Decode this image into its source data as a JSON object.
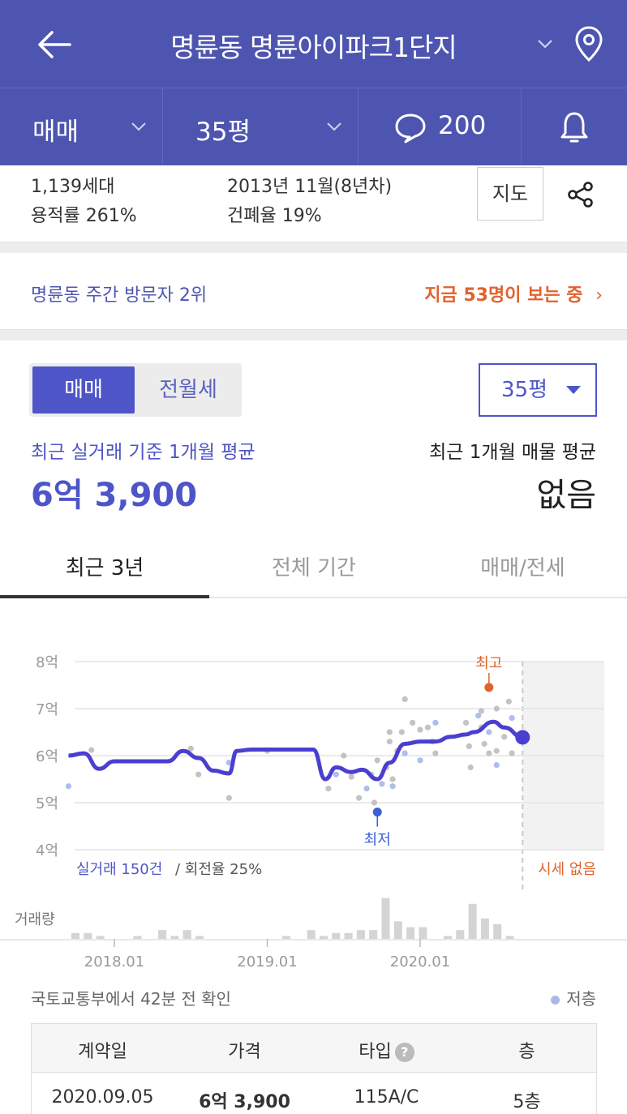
{
  "header": {
    "title": "명륜동 명륜아이파크1단지"
  },
  "subbar": {
    "trade_type": "매매",
    "size": "35평",
    "comment_count": "200"
  },
  "info": {
    "households": "1,139세대",
    "far": "용적률 261%",
    "built": "2013년 11월(8년차)",
    "bcr": "건폐율 19%",
    "map_label": "지도"
  },
  "visitors": {
    "rank": "명륜동 주간 방문자 2위",
    "viewing": "지금 53명이 보는 중"
  },
  "segment": {
    "active": "매매",
    "inactive": "전월세"
  },
  "size_select": "35평",
  "averages": {
    "deal_label": "최근 실거래 기준 1개월 평균",
    "deal_value": "6억 3,900",
    "listing_label": "최근 1개월 매물 평균",
    "listing_value": "없음"
  },
  "tabs": [
    "최근 3년",
    "전체 기간",
    "매매/전세"
  ],
  "chart_data": {
    "type": "line",
    "y_ticks": [
      "8억",
      "7억",
      "6억",
      "5억",
      "4억"
    ],
    "ylim": [
      4,
      8
    ],
    "x_ticks": [
      "2018.01",
      "2019.01",
      "2020.01"
    ],
    "series": [
      {
        "values": [
          [
            2017.7,
            6.0
          ],
          [
            2017.8,
            6.05
          ],
          [
            2017.9,
            5.72
          ],
          [
            2018.0,
            5.88
          ],
          [
            2018.2,
            5.88
          ],
          [
            2018.35,
            5.88
          ],
          [
            2018.45,
            6.1
          ],
          [
            2018.55,
            5.95
          ],
          [
            2018.65,
            5.68
          ],
          [
            2018.75,
            5.62
          ],
          [
            2018.8,
            6.1
          ],
          [
            2018.9,
            6.13
          ],
          [
            2019.1,
            6.13
          ],
          [
            2019.3,
            6.13
          ],
          [
            2019.38,
            5.5
          ],
          [
            2019.45,
            5.75
          ],
          [
            2019.55,
            5.65
          ],
          [
            2019.62,
            5.7
          ],
          [
            2019.72,
            5.5
          ],
          [
            2019.8,
            5.85
          ],
          [
            2019.9,
            6.25
          ],
          [
            2020.0,
            6.3
          ],
          [
            2020.1,
            6.3
          ],
          [
            2020.2,
            6.4
          ],
          [
            2020.3,
            6.45
          ],
          [
            2020.35,
            6.5
          ],
          [
            2020.48,
            6.72
          ],
          [
            2020.55,
            6.6
          ],
          [
            2020.67,
            6.39
          ]
        ]
      }
    ],
    "high_label": "최고",
    "high_value": 7.45,
    "low_label": "최저",
    "low_value": 4.8,
    "last_value": 6.39,
    "deals_summary": "실거래 150건",
    "turnover": "/ 회전율 25%",
    "no_market": "시세 없음",
    "volume_label": "거래량",
    "volume": [
      2,
      2,
      1,
      0,
      0,
      1,
      0,
      3,
      1,
      3,
      1,
      0,
      0,
      0,
      0,
      0,
      0,
      1,
      0,
      3,
      1,
      2,
      2,
      3,
      3,
      14,
      6,
      4,
      4,
      0,
      1,
      3,
      12,
      7,
      5,
      1
    ]
  },
  "source": "국토교통부에서 42분 전 확인",
  "legend_low": "저층",
  "table": {
    "headers": [
      "계약일",
      "가격",
      "타입",
      "층"
    ],
    "rows": [
      [
        "2020.09.05",
        "6억 3,900",
        "115A/C",
        "5층"
      ]
    ]
  }
}
